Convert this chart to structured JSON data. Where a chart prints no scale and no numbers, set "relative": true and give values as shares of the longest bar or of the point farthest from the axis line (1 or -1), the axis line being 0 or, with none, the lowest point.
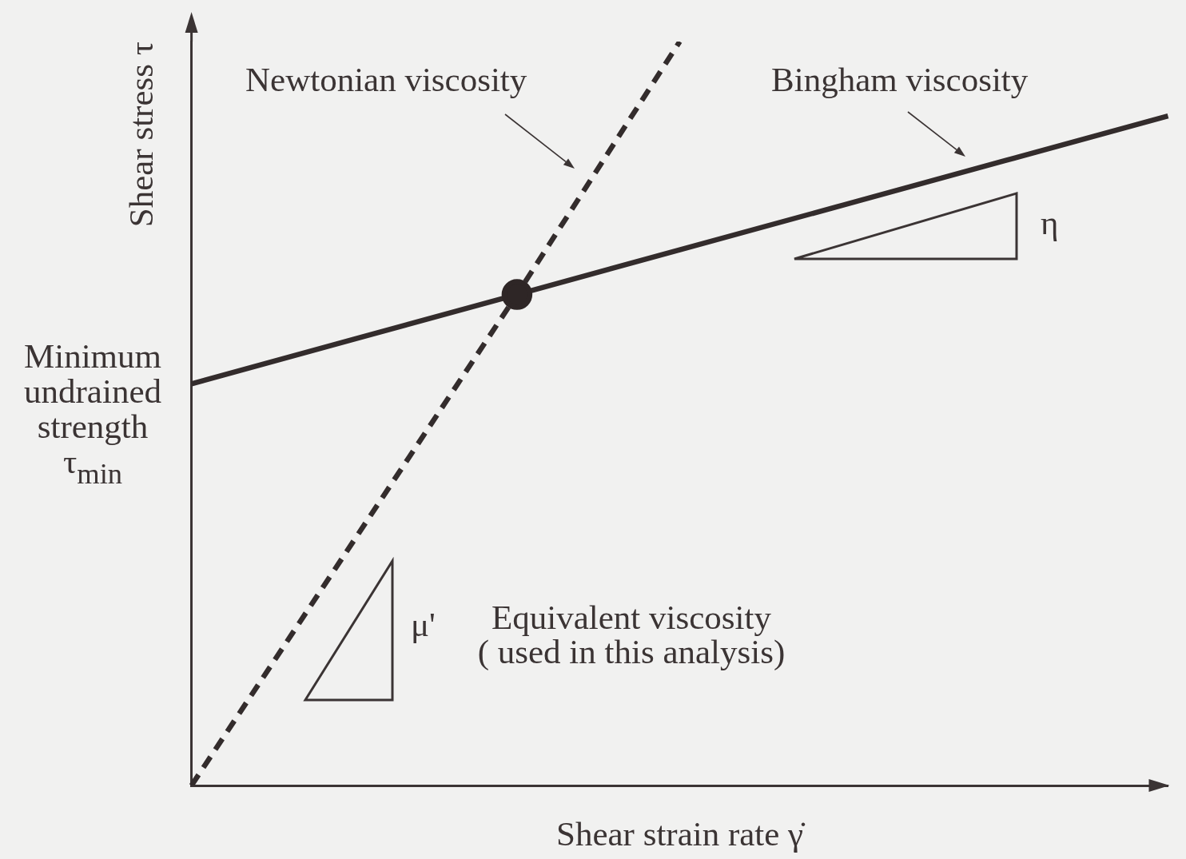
{
  "chart_data": {
    "type": "line",
    "relative": true,
    "marker": "none",
    "xlabel": "Shear strain rate γ̇",
    "ylabel": "Shear stress τ",
    "categories": [
      null,
      null,
      null,
      null,
      null,
      null,
      null
    ],
    "series": [
      {
        "name": "Newtonian viscosity",
        "color": "#332c2c",
        "line_style": "dashed",
        "values": [
          0,
          0.33,
          0.66,
          1,
          null,
          null,
          null
        ]
      },
      {
        "name": "Bingham viscosity",
        "color": "#332c2c",
        "values": [
          0.54,
          0.6,
          0.66,
          0.72,
          0.78,
          0.84,
          0.9
        ]
      },
      {
        "marker": "circle",
        "color": "#2e2626",
        "values": [
          null,
          null,
          0.66,
          null,
          null,
          null,
          null
        ]
      }
    ],
    "annotations": [
      "Minimum undrained strength τ$_{min}$",
      "η",
      "μ'",
      "Equivalent viscosity\n( used in this analysis)"
    ]
  }
}
